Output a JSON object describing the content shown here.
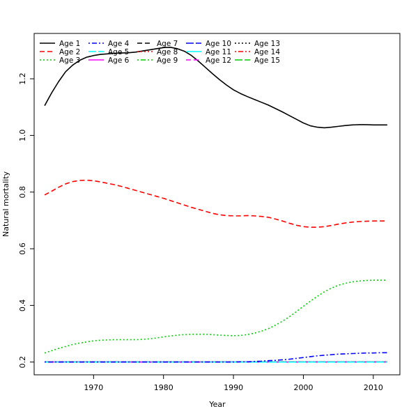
{
  "chart_data": {
    "type": "line",
    "title": "",
    "xlabel": "Year",
    "ylabel": "Natural mortality",
    "xlim": [
      1961.5,
      2013.8
    ],
    "ylim": [
      0.155,
      1.36
    ],
    "xticks": [
      1970,
      1980,
      1990,
      2000,
      2010
    ],
    "yticks": [
      0.2,
      0.4,
      0.6,
      0.8,
      1.0,
      1.2
    ],
    "ytick_labels": [
      "0.2",
      "0.4",
      "0.6",
      "0.8",
      "1.0",
      "1.2"
    ],
    "grid": false,
    "legend_position": "top-left",
    "x": [
      1963,
      1964,
      1965,
      1966,
      1967,
      1968,
      1969,
      1970,
      1971,
      1972,
      1973,
      1974,
      1975,
      1976,
      1977,
      1978,
      1979,
      1980,
      1981,
      1982,
      1983,
      1984,
      1985,
      1986,
      1987,
      1988,
      1989,
      1990,
      1991,
      1992,
      1993,
      1994,
      1995,
      1996,
      1997,
      1998,
      1999,
      2000,
      2001,
      2002,
      2003,
      2004,
      2005,
      2006,
      2007,
      2008,
      2009,
      2010,
      2011,
      2012
    ],
    "series": [
      {
        "name": "Age 1",
        "color": "#000000",
        "dash": "solid",
        "values": [
          1.105,
          1.15,
          1.19,
          1.225,
          1.248,
          1.265,
          1.276,
          1.282,
          1.286,
          1.288,
          1.29,
          1.291,
          1.292,
          1.294,
          1.298,
          1.302,
          1.306,
          1.31,
          1.311,
          1.306,
          1.297,
          1.282,
          1.262,
          1.24,
          1.218,
          1.197,
          1.178,
          1.161,
          1.148,
          1.137,
          1.127,
          1.117,
          1.107,
          1.095,
          1.083,
          1.07,
          1.057,
          1.044,
          1.034,
          1.029,
          1.027,
          1.029,
          1.032,
          1.035,
          1.037,
          1.038,
          1.038,
          1.037,
          1.037,
          1.037
        ]
      },
      {
        "name": "Age 2",
        "color": "#ff0000",
        "dash": "dashed",
        "values": [
          0.79,
          0.803,
          0.817,
          0.829,
          0.837,
          0.841,
          0.842,
          0.84,
          0.836,
          0.831,
          0.826,
          0.82,
          0.813,
          0.806,
          0.799,
          0.792,
          0.785,
          0.778,
          0.77,
          0.762,
          0.754,
          0.746,
          0.739,
          0.732,
          0.725,
          0.72,
          0.717,
          0.716,
          0.716,
          0.717,
          0.716,
          0.714,
          0.711,
          0.705,
          0.698,
          0.69,
          0.683,
          0.678,
          0.676,
          0.676,
          0.678,
          0.682,
          0.687,
          0.691,
          0.694,
          0.696,
          0.697,
          0.698,
          0.698,
          0.698
        ]
      },
      {
        "name": "Age 3",
        "color": "#00cd00",
        "dash": "dotted",
        "values": [
          0.232,
          0.24,
          0.248,
          0.255,
          0.262,
          0.267,
          0.271,
          0.275,
          0.277,
          0.278,
          0.279,
          0.279,
          0.279,
          0.279,
          0.28,
          0.282,
          0.285,
          0.289,
          0.292,
          0.295,
          0.297,
          0.298,
          0.298,
          0.298,
          0.297,
          0.295,
          0.294,
          0.293,
          0.294,
          0.297,
          0.302,
          0.309,
          0.318,
          0.33,
          0.344,
          0.36,
          0.378,
          0.397,
          0.415,
          0.432,
          0.448,
          0.461,
          0.471,
          0.478,
          0.483,
          0.486,
          0.488,
          0.489,
          0.489,
          0.489
        ]
      },
      {
        "name": "Age 4",
        "color": "#0000ff",
        "dash": "dotdash",
        "values": [
          0.2,
          0.2,
          0.2,
          0.2,
          0.2,
          0.2,
          0.2,
          0.2,
          0.2,
          0.2,
          0.2,
          0.2,
          0.2,
          0.2,
          0.2,
          0.2,
          0.2,
          0.2,
          0.2,
          0.2,
          0.2,
          0.2,
          0.2,
          0.2,
          0.2,
          0.2,
          0.2,
          0.2,
          0.201,
          0.201,
          0.202,
          0.203,
          0.205,
          0.206,
          0.208,
          0.21,
          0.213,
          0.216,
          0.219,
          0.222,
          0.224,
          0.226,
          0.228,
          0.229,
          0.23,
          0.231,
          0.232,
          0.232,
          0.233,
          0.233
        ]
      },
      {
        "name": "Age 5",
        "color": "#00ffff",
        "dash": "longdash",
        "values": [
          0.2,
          0.2,
          0.2,
          0.2,
          0.2,
          0.2,
          0.2,
          0.2,
          0.2,
          0.2,
          0.2,
          0.2,
          0.2,
          0.2,
          0.2,
          0.2,
          0.2,
          0.2,
          0.2,
          0.2,
          0.2,
          0.2,
          0.2,
          0.2,
          0.2,
          0.2,
          0.2,
          0.2,
          0.2,
          0.2,
          0.2,
          0.2,
          0.2,
          0.2,
          0.2,
          0.2,
          0.2,
          0.2,
          0.2,
          0.2,
          0.2,
          0.2,
          0.2,
          0.2,
          0.2,
          0.2,
          0.2,
          0.2,
          0.2,
          0.2
        ]
      },
      {
        "name": "Age 6",
        "color": "#ff00ff",
        "dash": "solid",
        "values": [
          0.2,
          0.2,
          0.2,
          0.2,
          0.2,
          0.2,
          0.2,
          0.2,
          0.2,
          0.2,
          0.2,
          0.2,
          0.2,
          0.2,
          0.2,
          0.2,
          0.2,
          0.2,
          0.2,
          0.2,
          0.2,
          0.2,
          0.2,
          0.2,
          0.2,
          0.2,
          0.2,
          0.2,
          0.2,
          0.2,
          0.2,
          0.2,
          0.2,
          0.2,
          0.2,
          0.2,
          0.2,
          0.2,
          0.2,
          0.2,
          0.2,
          0.2,
          0.2,
          0.2,
          0.2,
          0.2,
          0.2,
          0.2,
          0.2,
          0.2
        ]
      },
      {
        "name": "Age 7",
        "color": "#000000",
        "dash": "dashed",
        "values": [
          0.2,
          0.2,
          0.2,
          0.2,
          0.2,
          0.2,
          0.2,
          0.2,
          0.2,
          0.2,
          0.2,
          0.2,
          0.2,
          0.2,
          0.2,
          0.2,
          0.2,
          0.2,
          0.2,
          0.2,
          0.2,
          0.2,
          0.2,
          0.2,
          0.2,
          0.2,
          0.2,
          0.2,
          0.2,
          0.2,
          0.2,
          0.2,
          0.2,
          0.2,
          0.2,
          0.2,
          0.2,
          0.2,
          0.2,
          0.2,
          0.2,
          0.2,
          0.2,
          0.2,
          0.2,
          0.2,
          0.2,
          0.2,
          0.2,
          0.2
        ]
      },
      {
        "name": "Age 8",
        "color": "#ff0000",
        "dash": "dotted",
        "values": [
          0.2,
          0.2,
          0.2,
          0.2,
          0.2,
          0.2,
          0.2,
          0.2,
          0.2,
          0.2,
          0.2,
          0.2,
          0.2,
          0.2,
          0.2,
          0.2,
          0.2,
          0.2,
          0.2,
          0.2,
          0.2,
          0.2,
          0.2,
          0.2,
          0.2,
          0.2,
          0.2,
          0.2,
          0.2,
          0.2,
          0.2,
          0.2,
          0.2,
          0.2,
          0.2,
          0.2,
          0.2,
          0.2,
          0.2,
          0.2,
          0.2,
          0.2,
          0.2,
          0.2,
          0.2,
          0.2,
          0.2,
          0.2,
          0.2,
          0.2
        ]
      },
      {
        "name": "Age 9",
        "color": "#00cd00",
        "dash": "dotdash",
        "values": [
          0.2,
          0.2,
          0.2,
          0.2,
          0.2,
          0.2,
          0.2,
          0.2,
          0.2,
          0.2,
          0.2,
          0.2,
          0.2,
          0.2,
          0.2,
          0.2,
          0.2,
          0.2,
          0.2,
          0.2,
          0.2,
          0.2,
          0.2,
          0.2,
          0.2,
          0.2,
          0.2,
          0.2,
          0.2,
          0.2,
          0.2,
          0.2,
          0.2,
          0.2,
          0.2,
          0.2,
          0.2,
          0.2,
          0.2,
          0.2,
          0.2,
          0.2,
          0.2,
          0.2,
          0.2,
          0.2,
          0.2,
          0.2,
          0.2,
          0.2
        ]
      },
      {
        "name": "Age 10",
        "color": "#0000ff",
        "dash": "longdash",
        "values": [
          0.2,
          0.2,
          0.2,
          0.2,
          0.2,
          0.2,
          0.2,
          0.2,
          0.2,
          0.2,
          0.2,
          0.2,
          0.2,
          0.2,
          0.2,
          0.2,
          0.2,
          0.2,
          0.2,
          0.2,
          0.2,
          0.2,
          0.2,
          0.2,
          0.2,
          0.2,
          0.2,
          0.2,
          0.2,
          0.2,
          0.2,
          0.2,
          0.2,
          0.2,
          0.2,
          0.2,
          0.2,
          0.2,
          0.2,
          0.2,
          0.2,
          0.2,
          0.2,
          0.2,
          0.2,
          0.2,
          0.2,
          0.2,
          0.2,
          0.2
        ]
      },
      {
        "name": "Age 11",
        "color": "#00ffff",
        "dash": "solid",
        "values": [
          0.2,
          0.2,
          0.2,
          0.2,
          0.2,
          0.2,
          0.2,
          0.2,
          0.2,
          0.2,
          0.2,
          0.2,
          0.2,
          0.2,
          0.2,
          0.2,
          0.2,
          0.2,
          0.2,
          0.2,
          0.2,
          0.2,
          0.2,
          0.2,
          0.2,
          0.2,
          0.2,
          0.2,
          0.2,
          0.2,
          0.2,
          0.2,
          0.2,
          0.2,
          0.2,
          0.2,
          0.2,
          0.2,
          0.2,
          0.2,
          0.2,
          0.2,
          0.2,
          0.2,
          0.2,
          0.2,
          0.2,
          0.2,
          0.2,
          0.2
        ]
      },
      {
        "name": "Age 12",
        "color": "#ff00ff",
        "dash": "dashed",
        "values": [
          0.2,
          0.2,
          0.2,
          0.2,
          0.2,
          0.2,
          0.2,
          0.2,
          0.2,
          0.2,
          0.2,
          0.2,
          0.2,
          0.2,
          0.2,
          0.2,
          0.2,
          0.2,
          0.2,
          0.2,
          0.2,
          0.2,
          0.2,
          0.2,
          0.2,
          0.2,
          0.2,
          0.2,
          0.2,
          0.2,
          0.2,
          0.2,
          0.2,
          0.2,
          0.2,
          0.2,
          0.2,
          0.2,
          0.2,
          0.2,
          0.2,
          0.2,
          0.2,
          0.2,
          0.2,
          0.2,
          0.2,
          0.2,
          0.2,
          0.2
        ]
      },
      {
        "name": "Age 13",
        "color": "#000000",
        "dash": "dotted",
        "values": [
          0.2,
          0.2,
          0.2,
          0.2,
          0.2,
          0.2,
          0.2,
          0.2,
          0.2,
          0.2,
          0.2,
          0.2,
          0.2,
          0.2,
          0.2,
          0.2,
          0.2,
          0.2,
          0.2,
          0.2,
          0.2,
          0.2,
          0.2,
          0.2,
          0.2,
          0.2,
          0.2,
          0.2,
          0.2,
          0.2,
          0.2,
          0.2,
          0.2,
          0.2,
          0.2,
          0.2,
          0.2,
          0.2,
          0.2,
          0.2,
          0.2,
          0.2,
          0.2,
          0.2,
          0.2,
          0.2,
          0.2,
          0.2,
          0.2,
          0.2
        ]
      },
      {
        "name": "Age 14",
        "color": "#ff0000",
        "dash": "dotdash",
        "values": [
          0.2,
          0.2,
          0.2,
          0.2,
          0.2,
          0.2,
          0.2,
          0.2,
          0.2,
          0.2,
          0.2,
          0.2,
          0.2,
          0.2,
          0.2,
          0.2,
          0.2,
          0.2,
          0.2,
          0.2,
          0.2,
          0.2,
          0.2,
          0.2,
          0.2,
          0.2,
          0.2,
          0.2,
          0.2,
          0.2,
          0.2,
          0.2,
          0.2,
          0.2,
          0.2,
          0.2,
          0.2,
          0.2,
          0.2,
          0.2,
          0.2,
          0.2,
          0.2,
          0.2,
          0.2,
          0.2,
          0.2,
          0.2,
          0.2,
          0.2
        ]
      },
      {
        "name": "Age 15",
        "color": "#00cd00",
        "dash": "longdash",
        "values": [
          0.2,
          0.2,
          0.2,
          0.2,
          0.2,
          0.2,
          0.2,
          0.2,
          0.2,
          0.2,
          0.2,
          0.2,
          0.2,
          0.2,
          0.2,
          0.2,
          0.2,
          0.2,
          0.2,
          0.2,
          0.2,
          0.2,
          0.2,
          0.2,
          0.2,
          0.2,
          0.2,
          0.2,
          0.2,
          0.2,
          0.2,
          0.2,
          0.2,
          0.2,
          0.2,
          0.2,
          0.2,
          0.2,
          0.2,
          0.2,
          0.2,
          0.2,
          0.2,
          0.2,
          0.2,
          0.2,
          0.2,
          0.2,
          0.2,
          0.2
        ]
      }
    ]
  }
}
